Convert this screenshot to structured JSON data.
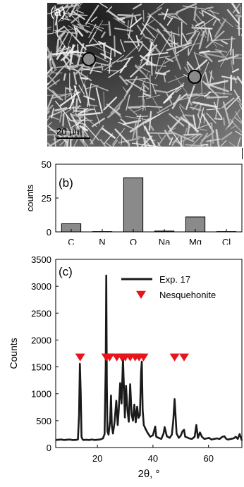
{
  "panel_a": {
    "label": "(a)",
    "scalebar_label": "20 μm"
  },
  "chart_data": [
    {
      "type": "bar",
      "label": "(b)",
      "categories": [
        "C",
        "N",
        "O",
        "Na",
        "Mg",
        "Cl"
      ],
      "values": [
        6,
        0.2,
        40,
        0.6,
        11,
        0.2
      ],
      "ylabel": "counts",
      "ylim": [
        0,
        50
      ],
      "yticks": [
        0,
        25,
        50
      ],
      "bar_color": "#8a8a8a"
    },
    {
      "type": "line",
      "label": "(c)",
      "xlabel": "2θ, °",
      "ylabel": "Counts",
      "xlim": [
        5,
        72
      ],
      "ylim": [
        0,
        3500
      ],
      "xticks": [
        20,
        40,
        60
      ],
      "yticks": [
        0,
        500,
        1000,
        1500,
        2000,
        2500,
        3000,
        3500
      ],
      "series": [
        {
          "name": "Exp. 17",
          "color": "#1a1a1a",
          "x": [
            5,
            6,
            7,
            8,
            9,
            10,
            11,
            12,
            13,
            13.4,
            13.7,
            14.0,
            14.3,
            14.7,
            15,
            16,
            17,
            18,
            19,
            20,
            21,
            22,
            22.6,
            23.0,
            23.2,
            23.4,
            23.6,
            24.0,
            24.6,
            24.9,
            25.2,
            25.6,
            26.2,
            26.8,
            27.3,
            27.7,
            28.2,
            28.7,
            29.2,
            29.6,
            29.9,
            30.3,
            30.8,
            31.3,
            31.8,
            32.3,
            32.8,
            33.3,
            33.8,
            34.3,
            34.8,
            35.3,
            35.7,
            36.0,
            36.3,
            36.7,
            37.2,
            38,
            39,
            40,
            40.8,
            41.2,
            42,
            43,
            43.8,
            44.2,
            45,
            46,
            46.8,
            47.3,
            47.8,
            48.5,
            49.3,
            50,
            50.6,
            51.2,
            51.6,
            52.2,
            53,
            54,
            55,
            55.6,
            56.2,
            56.9,
            57.6,
            58.5,
            59.4,
            60.2,
            61,
            62,
            63,
            64,
            65,
            65.7,
            66.4,
            67,
            68,
            69,
            69.8,
            70.5,
            71.2,
            72
          ],
          "y": [
            140,
            145,
            150,
            140,
            145,
            150,
            140,
            140,
            150,
            600,
            1560,
            1000,
            200,
            150,
            140,
            145,
            140,
            150,
            140,
            145,
            150,
            170,
            250,
            1500,
            3200,
            1200,
            300,
            240,
            500,
            970,
            400,
            260,
            480,
            870,
            420,
            700,
            1200,
            820,
            1650,
            1050,
            560,
            1150,
            700,
            480,
            1180,
            620,
            500,
            800,
            470,
            760,
            550,
            600,
            1400,
            1600,
            700,
            420,
            360,
            280,
            200,
            230,
            390,
            200,
            180,
            160,
            260,
            380,
            210,
            180,
            240,
            500,
            900,
            260,
            180,
            220,
            300,
            330,
            200,
            190,
            170,
            160,
            200,
            420,
            180,
            280,
            200,
            160,
            170,
            180,
            150,
            160,
            170,
            160,
            200,
            210,
            160,
            150,
            160,
            170,
            200,
            160,
            250,
            130
          ]
        },
        {
          "name": "Nesquehonite",
          "color": "#e8141c",
          "marker": "triangle-down",
          "x": [
            13.8,
            23.2,
            24.4,
            27.0,
            28.8,
            30.0,
            31.8,
            33.6,
            35.0,
            36.6,
            47.8,
            51.2
          ],
          "y": [
            1680,
            1680,
            1680,
            1680,
            1680,
            1680,
            1680,
            1680,
            1680,
            1680,
            1680,
            1680
          ]
        }
      ],
      "legend_placement": "top-right"
    }
  ]
}
